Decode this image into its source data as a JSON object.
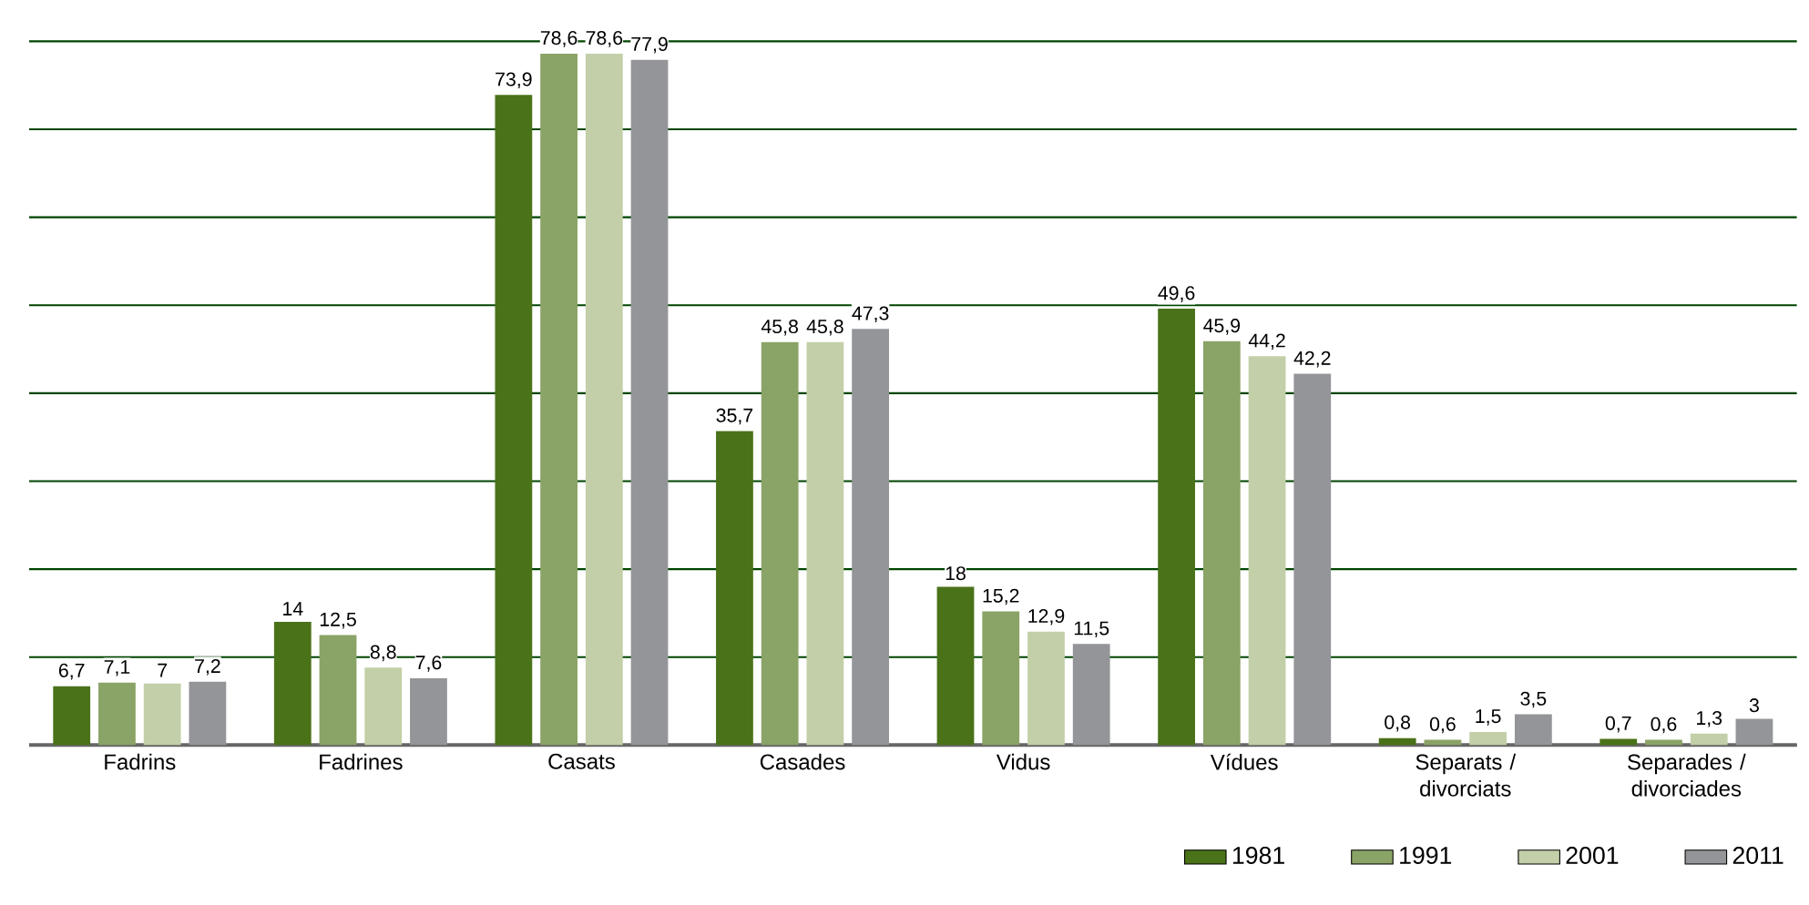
{
  "chart_data": {
    "type": "bar",
    "categories": [
      "Fadrins",
      "Fadrines",
      "Casats",
      "Casades",
      "Vidus",
      "Vídues",
      "Separats / divorciats",
      "Separades / divorciades"
    ],
    "series": [
      {
        "name": "1981",
        "color": "#4a7219",
        "values": [
          6.7,
          14,
          73.9,
          35.7,
          18,
          49.6,
          0.8,
          0.7
        ],
        "value_labels": [
          "6,7",
          "14",
          "73,9",
          "35,7",
          "18",
          "49,6",
          "0,8",
          "0,7"
        ]
      },
      {
        "name": "1991",
        "color": "#8aa366",
        "values": [
          7.1,
          12.5,
          78.6,
          45.8,
          15.2,
          45.9,
          0.6,
          0.6
        ],
        "value_labels": [
          "7,1",
          "12,5",
          "78,6",
          "45,8",
          "15,2",
          "45,9",
          "0,6",
          "0,6"
        ]
      },
      {
        "name": "2001",
        "color": "#c2cfa8",
        "values": [
          7,
          8.8,
          78.6,
          45.8,
          12.9,
          44.2,
          1.5,
          1.3
        ],
        "value_labels": [
          "7",
          "8,8",
          "78,6",
          "45,8",
          "12,9",
          "44,2",
          "1,5",
          "1,3"
        ]
      },
      {
        "name": "2011",
        "color": "#939598",
        "values": [
          7.2,
          7.6,
          77.9,
          47.3,
          11.5,
          42.2,
          3.5,
          3
        ],
        "value_labels": [
          "7,2",
          "7,6",
          "77,9",
          "47,3",
          "11,5",
          "42,2",
          "3,5",
          "3"
        ]
      }
    ],
    "ylim": [
      0,
      80
    ],
    "yticks": [
      {
        "value": 0,
        "label": null
      },
      {
        "value": 10,
        "label": null
      },
      {
        "value": 20,
        "label": null
      },
      {
        "value": 30,
        "label": null
      },
      {
        "value": 40,
        "label": null
      },
      {
        "value": 50,
        "label": null
      },
      {
        "value": 60,
        "label": null
      },
      {
        "value": 70,
        "label": null
      },
      {
        "value": 80,
        "label": null
      }
    ],
    "tick_labels": "x",
    "grid": "y",
    "legend": "bottom right"
  }
}
